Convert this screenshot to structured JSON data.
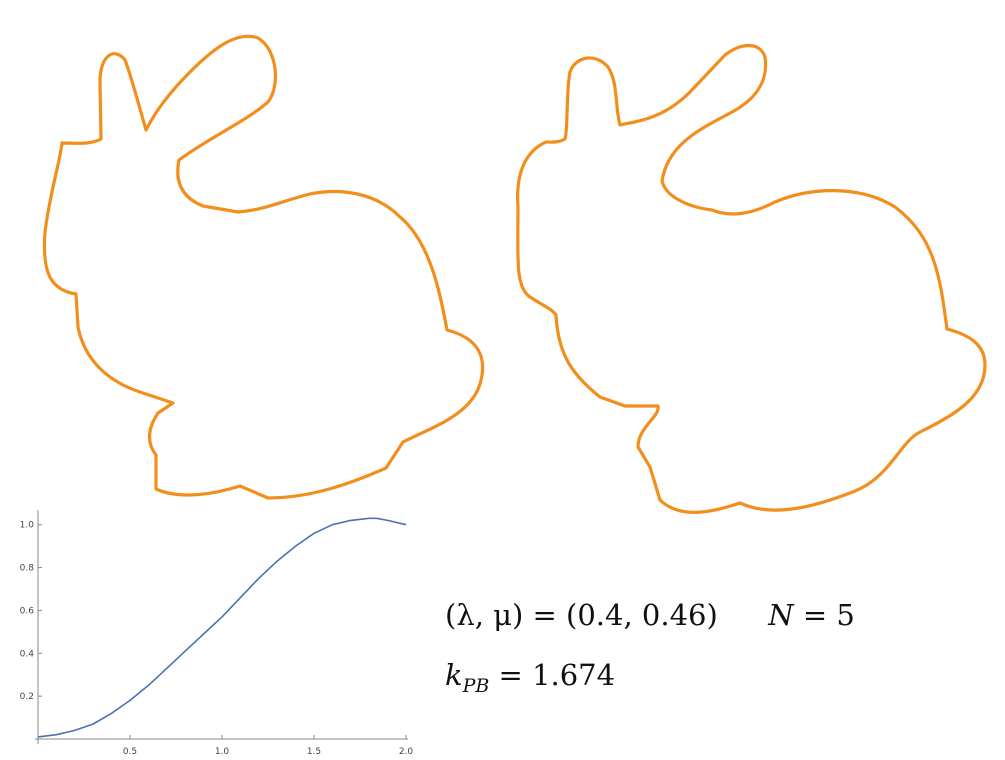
{
  "figures": {
    "shape_color": "#F28E1C",
    "left_shape": "bunny-contour (original)",
    "right_shape": "bunny-contour (smoothed)"
  },
  "annotation": {
    "params_lhs": "(λ, μ) =",
    "params_values": "(0.4, 0.46)",
    "n_label": "N",
    "n_value": "= 5",
    "k_symbol": "k",
    "k_subscript": "PB",
    "k_value": "= 1.674"
  },
  "chart_data": {
    "type": "line",
    "title": "",
    "xlabel": "",
    "ylabel": "",
    "xlim": [
      0,
      2.0
    ],
    "ylim": [
      0,
      1.05
    ],
    "x_ticks": [
      0.5,
      1.0,
      1.5,
      2.0
    ],
    "x_tick_labels": [
      "0.5",
      "1.0",
      "1.5",
      "2.0"
    ],
    "y_ticks": [
      0.2,
      0.4,
      0.6,
      0.8,
      1.0
    ],
    "y_tick_labels": [
      "0.2",
      "0.4",
      "0.6",
      "0.8",
      "1.0"
    ],
    "grid": false,
    "color": "#4A72B0",
    "series": [
      {
        "x": [
          0,
          0.1,
          0.2,
          0.3,
          0.4,
          0.5,
          0.6,
          0.7,
          0.8,
          0.9,
          1.0,
          1.1,
          1.2,
          1.3,
          1.4,
          1.5,
          1.6,
          1.7,
          1.8,
          1.84,
          1.9,
          2.0
        ],
        "values": [
          0.01,
          0.02,
          0.04,
          0.07,
          0.12,
          0.18,
          0.25,
          0.33,
          0.41,
          0.49,
          0.57,
          0.66,
          0.75,
          0.83,
          0.9,
          0.96,
          1.0,
          1.02,
          1.03,
          1.03,
          1.02,
          1.0
        ]
      }
    ]
  }
}
